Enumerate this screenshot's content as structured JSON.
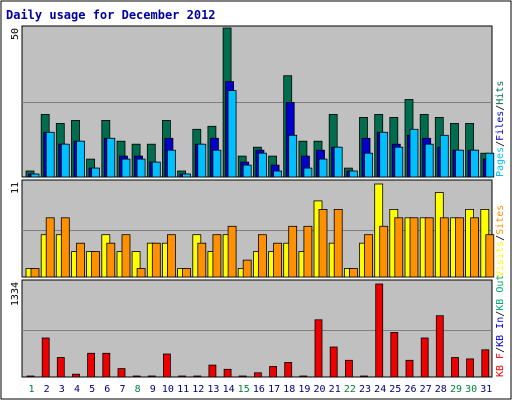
{
  "title": "Daily usage for December 2012",
  "colors": {
    "pages": "#00BFFF",
    "files": "#0000CC",
    "hits": "#006E4E",
    "visits": "#FFFF00",
    "sites": "#FF9000",
    "kbin": "#00AA77",
    "kbout": "#0000CC",
    "kbf": "#EE0000",
    "weekday": "#000080",
    "weekend": "#008040",
    "panel": "#C0C0C0",
    "frame": "#0000A0"
  },
  "chart_data": [
    {
      "type": "bar",
      "panel": "hits",
      "y_max_label": "50",
      "ylim": [
        0,
        50
      ],
      "side_labels": [
        "Pages",
        "/",
        "Files",
        "/",
        "Hits"
      ],
      "categories": [
        "1",
        "2",
        "3",
        "4",
        "5",
        "6",
        "7",
        "8",
        "9",
        "10",
        "11",
        "12",
        "13",
        "14",
        "15",
        "16",
        "17",
        "18",
        "19",
        "20",
        "21",
        "22",
        "23",
        "24",
        "25",
        "26",
        "27",
        "28",
        "29",
        "30",
        "31"
      ],
      "series": [
        {
          "key": "hits",
          "values": [
            2,
            21,
            18,
            19,
            6,
            19,
            12,
            11,
            11,
            19,
            2,
            16,
            17,
            50,
            7,
            10,
            7,
            34,
            12,
            12,
            21,
            3,
            20,
            21,
            20,
            26,
            21,
            20,
            18,
            18,
            8
          ]
        },
        {
          "key": "files",
          "values": [
            1,
            15,
            11,
            12,
            3,
            13,
            7,
            7,
            5,
            13,
            1,
            11,
            13,
            32,
            5,
            9,
            4,
            25,
            7,
            9,
            10,
            2,
            13,
            15,
            11,
            14,
            13,
            10,
            9,
            9,
            6
          ]
        },
        {
          "key": "pages",
          "values": [
            1,
            15,
            11,
            12,
            3,
            13,
            6,
            6,
            5,
            9,
            1,
            11,
            9,
            29,
            4,
            8,
            2,
            14,
            3,
            6,
            10,
            2,
            8,
            15,
            10,
            16,
            11,
            14,
            9,
            9,
            8
          ]
        }
      ]
    },
    {
      "type": "bar",
      "panel": "visits",
      "y_max_label": "11",
      "ylim": [
        0,
        11
      ],
      "side_labels": [
        "Visits",
        "/",
        "Sites"
      ],
      "categories": [
        "1",
        "2",
        "3",
        "4",
        "5",
        "6",
        "7",
        "8",
        "9",
        "10",
        "11",
        "12",
        "13",
        "14",
        "15",
        "16",
        "17",
        "18",
        "19",
        "20",
        "21",
        "22",
        "23",
        "24",
        "25",
        "26",
        "27",
        "28",
        "29",
        "30",
        "31"
      ],
      "series": [
        {
          "key": "visits",
          "values": [
            1,
            5,
            5,
            3,
            3,
            5,
            3,
            3,
            4,
            4,
            1,
            5,
            3,
            5,
            1,
            3,
            3,
            4,
            3,
            9,
            4,
            1,
            4,
            11,
            8,
            7,
            7,
            10,
            7,
            8,
            8
          ]
        },
        {
          "key": "sites",
          "values": [
            1,
            7,
            7,
            4,
            3,
            4,
            5,
            1,
            4,
            5,
            1,
            4,
            5,
            6,
            2,
            5,
            4,
            6,
            6,
            8,
            8,
            1,
            5,
            6,
            7,
            7,
            7,
            7,
            7,
            7,
            5
          ]
        }
      ]
    },
    {
      "type": "bar",
      "panel": "kbytes",
      "y_max_label": "1334",
      "ylim": [
        0,
        1334
      ],
      "side_labels": [
        "KB F",
        "/",
        "KB In",
        "/",
        "KB Out"
      ],
      "categories": [
        "1",
        "2",
        "3",
        "4",
        "5",
        "6",
        "7",
        "8",
        "9",
        "10",
        "11",
        "12",
        "13",
        "14",
        "15",
        "16",
        "17",
        "18",
        "19",
        "20",
        "21",
        "22",
        "23",
        "24",
        "25",
        "26",
        "27",
        "28",
        "29",
        "30",
        "31"
      ],
      "weekend_days": [
        "1",
        "8",
        "15",
        "22",
        "29",
        "30"
      ],
      "series": [
        {
          "key": "kbf",
          "values": [
            10,
            560,
            280,
            40,
            340,
            340,
            120,
            10,
            10,
            330,
            10,
            10,
            170,
            110,
            10,
            60,
            150,
            210,
            10,
            820,
            430,
            240,
            10,
            1334,
            640,
            240,
            560,
            880,
            280,
            260,
            390
          ]
        }
      ]
    }
  ]
}
